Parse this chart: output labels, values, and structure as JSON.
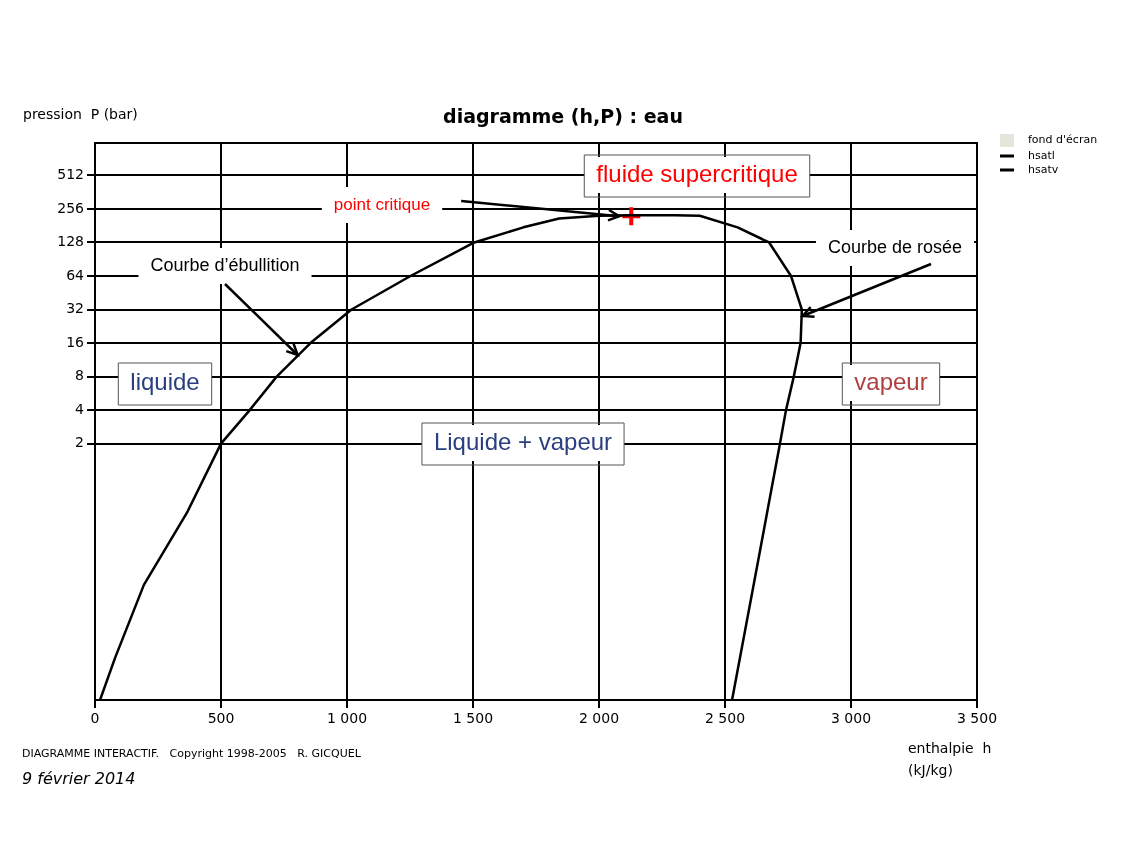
{
  "chart_data": {
    "type": "line",
    "title": "diagramme (h,P) : eau",
    "xlabel": "enthalpie  h (kJ/kg)",
    "ylabel": "pression  P (bar)",
    "log": "y",
    "grid": true,
    "legend": "top right",
    "marker": "none",
    "line_style": "solid",
    "xlim": [
      0,
      3500
    ],
    "xticks": [
      {
        "value": 0,
        "label": "0"
      },
      {
        "value": 500,
        "label": "500"
      },
      {
        "value": 1000,
        "label": "1 000"
      },
      {
        "value": 1500,
        "label": "1 500"
      },
      {
        "value": 2000,
        "label": "2 000"
      },
      {
        "value": 2500,
        "label": "2 500"
      },
      {
        "value": 3000,
        "label": "3 000"
      },
      {
        "value": 3500,
        "label": "3 500"
      }
    ],
    "ylim": [
      0.01,
      1000
    ],
    "yticks": [
      2,
      4,
      8,
      16,
      32,
      64,
      128,
      256,
      512
    ],
    "series": [
      {
        "name": "hsatl",
        "color": "#000000",
        "x": [
          20,
          80,
          194,
          365,
          500,
          614,
          721,
          855,
          1018,
          1252,
          1505,
          1700,
          1842,
          2000,
          2128
        ],
        "values": [
          0.01,
          0.024,
          0.108,
          0.48,
          2,
          4,
          8,
          16,
          32,
          64,
          128,
          175,
          210,
          222,
          225
        ]
      },
      {
        "name": "hsatv",
        "color": "#000000",
        "x": [
          2128,
          2300,
          2400,
          2550,
          2675,
          2762,
          2805,
          2800,
          2773,
          2742,
          2718,
          2623,
          2528
        ],
        "values": [
          225,
          225,
          222,
          175,
          128,
          64,
          32,
          16,
          8,
          4,
          2,
          0.14,
          0.01
        ]
      },
      {
        "type": "scatter",
        "marker": "cross",
        "color": "#ff0000",
        "x": [
          2128
        ],
        "values": [
          220
        ]
      }
    ],
    "annotations": [
      "fluide supercritique",
      "point critique",
      {
        "text": "Courbe d’ébullition",
        "x": 820,
        "y": 12.5
      },
      {
        "text": "Courbe de rosée",
        "x": 2800,
        "y": 28
      },
      "liquide",
      "Liquide + vapeur",
      "vapeur",
      "DIAGRAMME INTERACTIF.   Copyright 1998-2005   R. GICQUEL",
      "9 février 2014",
      "fond d'écran"
    ]
  }
}
